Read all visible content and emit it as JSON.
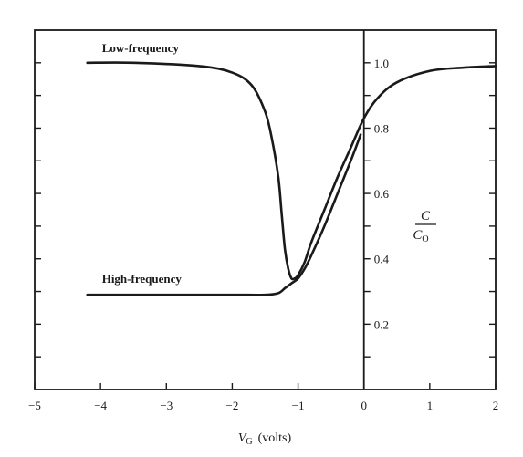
{
  "chart_data": {
    "type": "line",
    "title": "",
    "xlabel": {
      "var": "V",
      "sub": "G",
      "unit": "(volts)"
    },
    "ylabel": {
      "numerator": "C",
      "denominator": "C",
      "denominator_sub": "O"
    },
    "xlim": [
      -5,
      2
    ],
    "ylim": [
      0,
      1.1
    ],
    "x_ticks": [
      -5,
      -4,
      -3,
      -2,
      -1,
      0,
      1,
      2
    ],
    "x_tick_labels": [
      "−5",
      "−4",
      "−3",
      "−2",
      "−1",
      "0",
      "1",
      "2"
    ],
    "y_ticks": [
      0.2,
      0.4,
      0.6,
      0.8,
      1.0
    ],
    "y_tick_labels": [
      "0.2",
      "0.4",
      "0.6",
      "0.8",
      "1.0"
    ],
    "y_axis_position": "x=0",
    "grid": false,
    "legend": "none",
    "series": [
      {
        "name": "Low-frequency",
        "x": [
          -4.2,
          -3.5,
          -2.5,
          -2.0,
          -1.7,
          -1.5,
          -1.4,
          -1.3,
          -1.25,
          -1.2,
          -1.15,
          -1.1,
          -1.05,
          -1.0,
          -0.9,
          -0.8,
          -0.6,
          -0.4,
          -0.2,
          0.0,
          0.2,
          0.5,
          1.0,
          1.5,
          2.0
        ],
        "y": [
          1.0,
          1.0,
          0.99,
          0.97,
          0.93,
          0.85,
          0.77,
          0.65,
          0.54,
          0.43,
          0.37,
          0.34,
          0.34,
          0.35,
          0.39,
          0.45,
          0.55,
          0.65,
          0.74,
          0.83,
          0.89,
          0.94,
          0.975,
          0.985,
          0.99
        ]
      },
      {
        "name": "High-frequency",
        "x": [
          -4.2,
          -3.0,
          -2.0,
          -1.5,
          -1.3,
          -1.2,
          -1.1,
          -1.0,
          -0.9,
          -0.8,
          -0.6,
          -0.4,
          -0.2,
          -0.05
        ],
        "y": [
          0.29,
          0.29,
          0.29,
          0.29,
          0.295,
          0.31,
          0.325,
          0.34,
          0.37,
          0.41,
          0.5,
          0.6,
          0.7,
          0.78
        ]
      }
    ],
    "annotations": [
      {
        "text": "Low-frequency",
        "x": -4.2,
        "y": 1.033
      },
      {
        "text": "High-frequency",
        "x": -4.2,
        "y": 0.326
      }
    ]
  }
}
